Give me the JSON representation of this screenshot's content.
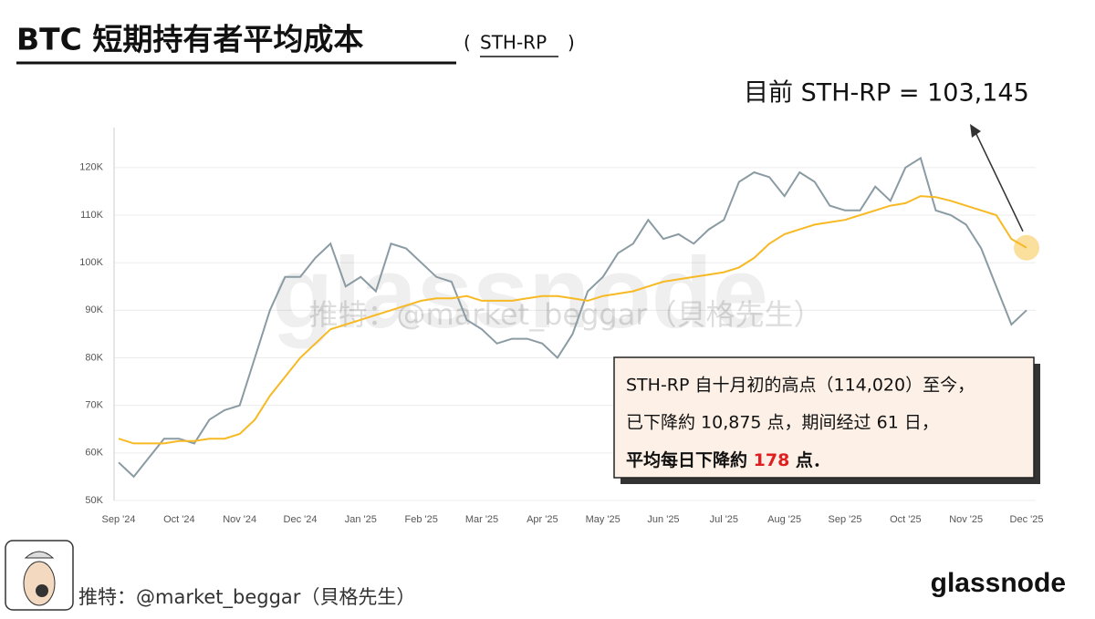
{
  "chart_data": {
    "type": "line",
    "title": "BTC 短期持有者平均成本",
    "subtitle": "STH-RP",
    "categories": [
      "Sep '24",
      null,
      null,
      null,
      "Oct '24",
      null,
      null,
      null,
      "Nov '24",
      null,
      null,
      null,
      "Dec '24",
      null,
      null,
      null,
      "Jan '25",
      null,
      null,
      null,
      "Feb '25",
      null,
      null,
      null,
      "Mar '25",
      null,
      null,
      null,
      "Apr '25",
      null,
      null,
      null,
      "May '25",
      null,
      null,
      null,
      "Jun '25",
      null,
      null,
      null,
      "Jul '25",
      null,
      null,
      null,
      "Aug '25",
      null,
      null,
      null,
      "Sep '25",
      null,
      null,
      null,
      "Oct '25",
      null,
      null,
      null,
      "Nov '25",
      null,
      null,
      null,
      "Dec '25"
    ],
    "series": [
      {
        "name": "BTC",
        "color": "#8a9ba3",
        "values": [
          58000,
          55000,
          59000,
          63000,
          63000,
          62000,
          67000,
          69000,
          70000,
          80000,
          90000,
          97000,
          97000,
          101000,
          104000,
          95000,
          97000,
          94000,
          104000,
          103000,
          100000,
          97000,
          96000,
          88000,
          86000,
          83000,
          84000,
          84000,
          83000,
          80000,
          85000,
          94000,
          97000,
          102000,
          104000,
          109000,
          105000,
          106000,
          104000,
          107000,
          109000,
          117000,
          119000,
          118000,
          114000,
          119000,
          117000,
          112000,
          111000,
          111000,
          116000,
          113000,
          120000,
          122000,
          111000,
          110000,
          108000,
          103000,
          95000,
          87000,
          90000
        ]
      },
      {
        "name": "STH-RP",
        "color": "#f7b924",
        "values": [
          63000,
          62000,
          62000,
          62000,
          62500,
          62500,
          63000,
          63000,
          64000,
          67000,
          72000,
          76000,
          80000,
          83000,
          86000,
          87000,
          88000,
          89000,
          90000,
          91000,
          92000,
          92500,
          92500,
          93000,
          92000,
          92000,
          92000,
          92500,
          93000,
          93000,
          92500,
          92000,
          93000,
          93500,
          94000,
          95000,
          96000,
          96500,
          97000,
          97500,
          98000,
          99000,
          101000,
          104000,
          106000,
          107000,
          108000,
          108500,
          109000,
          110000,
          111000,
          112000,
          112500,
          114000,
          113800,
          113000,
          112000,
          111000,
          110000,
          105000,
          103145
        ]
      }
    ],
    "ylim": [
      50000,
      128400
    ],
    "yticks": [
      {
        "value": 50000,
        "label": "50K"
      },
      {
        "value": 60000,
        "label": "60K"
      },
      {
        "value": 70000,
        "label": "70K"
      },
      {
        "value": 80000,
        "label": "80K"
      },
      {
        "value": 90000,
        "label": "90K"
      },
      {
        "value": 100000,
        "label": "100K"
      },
      {
        "value": 110000,
        "label": "110K"
      },
      {
        "value": 120000,
        "label": "120K"
      }
    ],
    "grid": true,
    "annotations": {
      "current": "目前 STH-RP = 103,145",
      "box_line1": "STH-RP 自十月初的高点（114,020）至今，",
      "box_line2": "已下降約 10,875 点，期间经过 61 日，",
      "box_line3a": "平均每日下降約 ",
      "box_line3b": "178",
      "box_line3c": " 点．",
      "watermark": "推特：@market_beggar（貝格先生）",
      "watermark_brand": "glassnode"
    }
  },
  "footer": {
    "credit": "推特：@market_beggar（貝格先生）",
    "brand": "glassnode"
  }
}
